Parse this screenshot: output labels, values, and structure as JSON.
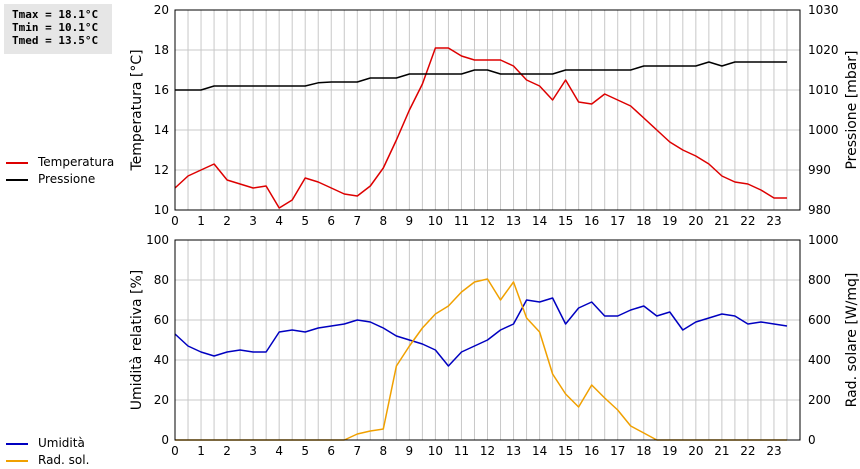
{
  "stats": {
    "tmax": "Tmax = 18.1°C",
    "tmin": "Tmin = 10.1°C",
    "tmed": "Tmed = 13.5°C"
  },
  "legend_top": [
    {
      "label": "Temperatura",
      "color": "#dd0000"
    },
    {
      "label": "Pressione",
      "color": "#000000"
    }
  ],
  "legend_bottom": [
    {
      "label": "Umidità",
      "color": "#0000c0"
    },
    {
      "label": "Rad. sol.",
      "color": "#f0a000"
    }
  ],
  "colors": {
    "grid": "#c8c8c8",
    "axis": "#000000"
  },
  "chart_data": [
    {
      "type": "line",
      "grid": true,
      "xlim": [
        0,
        24
      ],
      "x_ticks": [
        "0",
        "1",
        "2",
        "3",
        "4",
        "5",
        "6",
        "7",
        "8",
        "9",
        "10",
        "11",
        "12",
        "13",
        "14",
        "15",
        "16",
        "17",
        "18",
        "19",
        "20",
        "21",
        "22",
        "23"
      ],
      "ylabel_left": "Temperatura [°C]",
      "ylabel_right": "Pressione [mbar]",
      "ylim_left": [
        10,
        20
      ],
      "ylim_right": [
        980,
        1030
      ],
      "yticks_left": [
        "10",
        "12",
        "14",
        "16",
        "18",
        "20"
      ],
      "yticks_right": [
        "980",
        "990",
        "1000",
        "1010",
        "1020",
        "1030"
      ],
      "series": [
        {
          "name": "Temperatura",
          "axis": "left",
          "color": "#dd0000",
          "x": [
            0,
            0.5,
            1,
            1.5,
            2,
            2.5,
            3,
            3.5,
            4,
            4.5,
            5,
            5.5,
            6,
            6.5,
            7,
            7.5,
            8,
            8.5,
            9,
            9.5,
            10,
            10.5,
            11,
            11.5,
            12,
            12.5,
            13,
            13.5,
            14,
            14.5,
            15,
            15.5,
            16,
            16.5,
            17,
            17.5,
            18,
            18.5,
            19,
            19.5,
            20,
            20.5,
            21,
            21.5,
            22,
            22.5,
            23,
            23.5
          ],
          "y": [
            11.1,
            11.7,
            12.0,
            12.3,
            11.5,
            11.3,
            11.1,
            11.2,
            10.1,
            10.5,
            11.6,
            11.4,
            11.1,
            10.8,
            10.7,
            11.2,
            12.1,
            13.5,
            15.0,
            16.3,
            18.1,
            18.1,
            17.7,
            17.5,
            17.5,
            17.5,
            17.2,
            16.5,
            16.2,
            15.5,
            16.5,
            15.4,
            15.3,
            15.8,
            15.5,
            15.2,
            14.6,
            14.0,
            13.4,
            13.0,
            12.7,
            12.3,
            11.7,
            11.4,
            11.3,
            11.0,
            10.6,
            10.6
          ]
        },
        {
          "name": "Pressione",
          "axis": "right",
          "color": "#000000",
          "x": [
            0,
            0.5,
            1,
            1.5,
            2,
            2.5,
            3,
            3.5,
            4,
            4.5,
            5,
            5.5,
            6,
            6.5,
            7,
            7.5,
            8,
            8.5,
            9,
            9.5,
            10,
            10.5,
            11,
            11.5,
            12,
            12.5,
            13,
            13.5,
            14,
            14.5,
            15,
            15.5,
            16,
            16.5,
            17,
            17.5,
            18,
            18.5,
            19,
            19.5,
            20,
            20.5,
            21,
            21.5,
            22,
            22.5,
            23,
            23.5
          ],
          "y": [
            1010,
            1010,
            1010,
            1011,
            1011,
            1011,
            1011,
            1011,
            1011,
            1011,
            1011,
            1011.8,
            1012,
            1012,
            1012,
            1013,
            1013,
            1013,
            1014,
            1014,
            1014,
            1014,
            1014,
            1015,
            1015,
            1014,
            1014,
            1014,
            1014,
            1014,
            1015,
            1015,
            1015,
            1015,
            1015,
            1015,
            1016,
            1016,
            1016,
            1016,
            1016,
            1017,
            1016,
            1017,
            1017,
            1017,
            1017,
            1017
          ]
        }
      ]
    },
    {
      "type": "line",
      "grid": true,
      "xlim": [
        0,
        24
      ],
      "x_ticks": [
        "0",
        "1",
        "2",
        "3",
        "4",
        "5",
        "6",
        "7",
        "8",
        "9",
        "10",
        "11",
        "12",
        "13",
        "14",
        "15",
        "16",
        "17",
        "18",
        "19",
        "20",
        "21",
        "22",
        "23"
      ],
      "ylabel_left": "Umidità relativa [%]",
      "ylabel_right": "Rad. solare [W/mq]",
      "ylim_left": [
        0,
        100
      ],
      "ylim_right": [
        0,
        1000
      ],
      "yticks_left": [
        "0",
        "20",
        "40",
        "60",
        "80",
        "100"
      ],
      "yticks_right": [
        "0",
        "200",
        "400",
        "600",
        "800",
        "1000"
      ],
      "series": [
        {
          "name": "Umidità",
          "axis": "left",
          "color": "#0000c0",
          "x": [
            0,
            0.5,
            1,
            1.5,
            2,
            2.5,
            3,
            3.5,
            4,
            4.5,
            5,
            5.5,
            6,
            6.5,
            7,
            7.5,
            8,
            8.5,
            9,
            9.5,
            10,
            10.5,
            11,
            11.5,
            12,
            12.5,
            13,
            13.5,
            14,
            14.5,
            15,
            15.5,
            16,
            16.5,
            17,
            17.5,
            18,
            18.5,
            19,
            19.5,
            20,
            20.5,
            21,
            21.5,
            22,
            22.5,
            23,
            23.5
          ],
          "y": [
            53,
            47,
            44,
            42,
            44,
            45,
            44,
            44,
            54,
            55,
            54,
            56,
            57,
            58,
            60,
            59,
            56,
            52,
            50,
            48,
            45,
            37,
            44,
            47,
            50,
            55,
            58,
            70,
            69,
            71,
            58,
            66,
            69,
            62,
            62,
            65,
            67,
            62,
            64,
            55,
            59,
            61,
            63,
            62,
            58,
            59,
            58,
            57
          ]
        },
        {
          "name": "Rad. sol.",
          "axis": "right",
          "color": "#f0a000",
          "x": [
            0,
            0.5,
            1,
            1.5,
            2,
            2.5,
            3,
            3.5,
            4,
            4.5,
            5,
            5.5,
            6,
            6.5,
            7,
            7.5,
            8,
            8.5,
            9,
            9.5,
            10,
            10.5,
            11,
            11.5,
            12,
            12.5,
            13,
            13.5,
            14,
            14.5,
            15,
            15.5,
            16,
            16.5,
            17,
            17.5,
            18,
            18.5,
            19,
            19.5,
            20,
            20.5,
            21,
            21.5,
            22,
            22.5,
            23,
            23.5
          ],
          "y": [
            0,
            0,
            0,
            0,
            0,
            0,
            0,
            0,
            0,
            0,
            0,
            0,
            0,
            0,
            30,
            45,
            55,
            370,
            470,
            560,
            630,
            670,
            740,
            790,
            805,
            700,
            790,
            610,
            540,
            330,
            230,
            165,
            275,
            210,
            150,
            70,
            35,
            0,
            0,
            0,
            0,
            0,
            0,
            0,
            0,
            0,
            0,
            0
          ]
        }
      ]
    }
  ]
}
